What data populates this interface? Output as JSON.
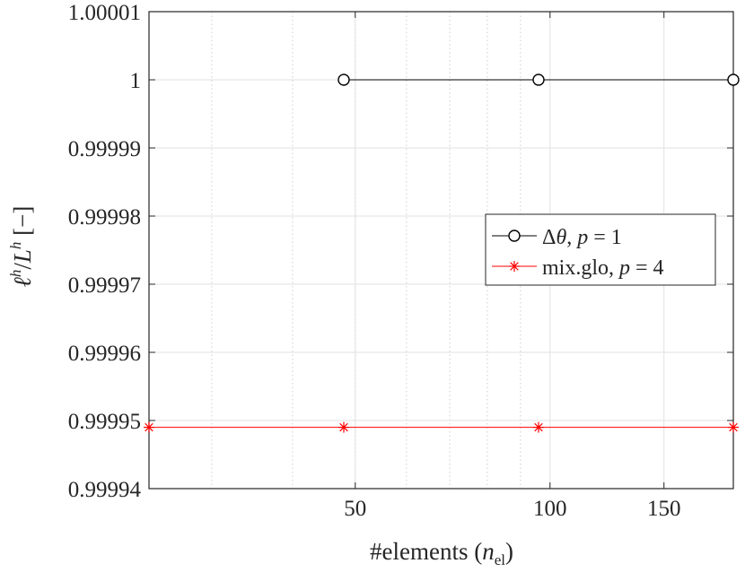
{
  "chart_data": {
    "type": "line",
    "x_scale": "log",
    "xlim": [
      24,
      192
    ],
    "ylim": [
      0.99994,
      1.00001
    ],
    "grid": true,
    "xlabel": "#elements (n_el)",
    "ylabel": "ℓ^h / L^h [−]",
    "xticks": [
      50,
      100,
      150
    ],
    "xtick_labels": [
      "50",
      "100",
      "150"
    ],
    "yticks": [
      0.99994,
      0.99995,
      0.99996,
      0.99997,
      0.99998,
      0.99999,
      1.0,
      1.00001
    ],
    "ytick_labels": [
      "0.99994",
      "0.99995",
      "0.99996",
      "0.99997",
      "0.99998",
      "0.99999",
      "1",
      "1.00001"
    ],
    "legend_position": "right",
    "series": [
      {
        "name": "Δθ, p = 1",
        "color": "#000000",
        "marker": "circle",
        "x": [
          48,
          96,
          192
        ],
        "y": [
          1.0,
          1.0,
          1.0
        ]
      },
      {
        "name": "mix.glo, p = 4",
        "color": "#ff0000",
        "marker": "asterisk",
        "x": [
          24,
          48,
          96,
          192
        ],
        "y": [
          0.999949,
          0.999949,
          0.999949,
          0.999949
        ]
      }
    ]
  }
}
